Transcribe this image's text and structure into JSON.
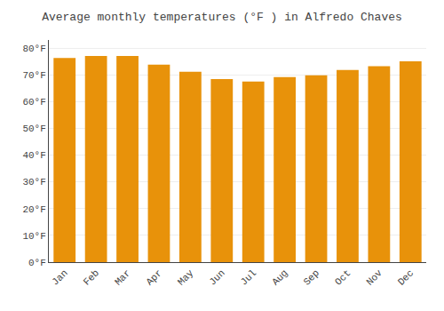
{
  "chart_data": {
    "type": "bar",
    "title": "Average monthly temperatures (°F ) in Alfredo Chaves",
    "categories": [
      "Jan",
      "Feb",
      "Mar",
      "Apr",
      "May",
      "Jun",
      "Jul",
      "Aug",
      "Sep",
      "Oct",
      "Nov",
      "Dec"
    ],
    "values": [
      76.3,
      77.0,
      77.0,
      73.8,
      71.1,
      68.4,
      67.5,
      69.1,
      69.8,
      71.8,
      73.2,
      75.0
    ],
    "color": "#E8920A",
    "ylim": [
      0,
      83
    ],
    "yticks": [
      {
        "value": 0,
        "label": "0°F"
      },
      {
        "value": 10,
        "label": "10°F"
      },
      {
        "value": 20,
        "label": "20°F"
      },
      {
        "value": 30,
        "label": "30°F"
      },
      {
        "value": 40,
        "label": "40°F"
      },
      {
        "value": 50,
        "label": "50°F"
      },
      {
        "value": 60,
        "label": "60°F"
      },
      {
        "value": 70,
        "label": "70°F"
      },
      {
        "value": 80,
        "label": "80°F"
      }
    ],
    "grid": true
  }
}
